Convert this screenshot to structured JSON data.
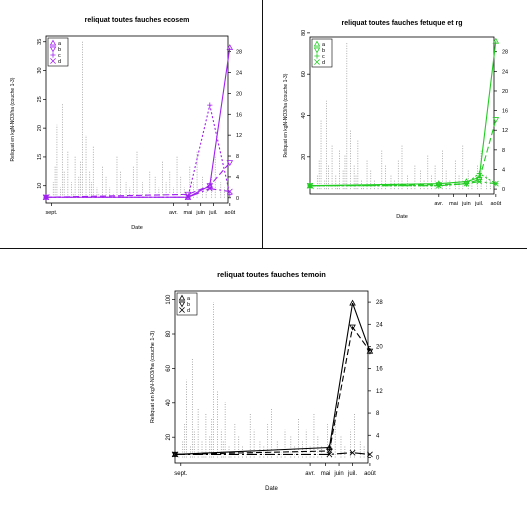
{
  "figure": {
    "colors": {
      "ecosem": "#a020f0",
      "fetuque": "#22cc22",
      "temoin": "#000000",
      "rain": "#9a9a9a",
      "frame": "#000000",
      "divider": "#111111"
    }
  },
  "chart_data": [
    {
      "type": "line",
      "title": "reliquat toutes fauches ecosem",
      "xlabel": "Date",
      "ylabel": "Reliquat en kgN-NO3/ha (couche 1-3)",
      "xlim": [
        0,
        100
      ],
      "ylim": [
        7,
        36
      ],
      "yticks": [
        10,
        15,
        20,
        25,
        30,
        35
      ],
      "y2lim": [
        -1,
        31
      ],
      "y2ticks": [
        0,
        4,
        8,
        12,
        16,
        20,
        24,
        28
      ],
      "month_ticks": [
        {
          "label": "sept.",
          "x": 3
        },
        {
          "label": "avr.",
          "x": 70
        },
        {
          "label": "mai",
          "x": 78
        },
        {
          "label": "juin",
          "x": 85
        },
        {
          "label": "juil.",
          "x": 92
        },
        {
          "label": "août",
          "x": 101
        }
      ],
      "legend": {
        "position": "top-left",
        "items": [
          {
            "label": "a",
            "pch": "triangle"
          },
          {
            "label": "b",
            "pch": "triangle-down"
          },
          {
            "label": "c",
            "pch": "plus"
          },
          {
            "label": "d",
            "pch": "cross"
          }
        ]
      },
      "series": [
        {
          "name": "a",
          "pch": "triangle",
          "dash": "0",
          "x": [
            0,
            78,
            90,
            101
          ],
          "y": [
            8,
            8,
            10,
            34
          ]
        },
        {
          "name": "b",
          "pch": "triangle-down",
          "dash": "6,3",
          "x": [
            0,
            78,
            90,
            101
          ],
          "y": [
            8,
            8.5,
            10,
            14
          ]
        },
        {
          "name": "c",
          "pch": "plus",
          "dash": "2,2",
          "x": [
            0,
            78,
            90,
            101
          ],
          "y": [
            8,
            8,
            24,
            8.5
          ]
        },
        {
          "name": "d",
          "pch": "cross",
          "dash": "10,3,2,3",
          "x": [
            0,
            78,
            90,
            101
          ],
          "y": [
            8,
            8,
            9.5,
            9
          ]
        }
      ],
      "rainfall": {
        "x": [
          2,
          4,
          5,
          6,
          8,
          9,
          10,
          12,
          14,
          15,
          16,
          18,
          19,
          20,
          22,
          24,
          25,
          26,
          28,
          29,
          31,
          33,
          35,
          37,
          39,
          41,
          44,
          46,
          48,
          50,
          53,
          55,
          57,
          60,
          62,
          64,
          66,
          68,
          70,
          72,
          74,
          76,
          79,
          81,
          83,
          86,
          88,
          91,
          93,
          96,
          98
        ],
        "y": [
          1,
          3,
          6,
          14,
          2,
          18,
          5,
          9,
          3,
          1,
          8,
          4,
          7,
          30,
          12,
          5,
          3,
          10,
          2,
          1,
          6,
          4,
          2,
          1,
          8,
          5,
          3,
          2,
          6,
          9,
          3,
          1,
          5,
          4,
          2,
          7,
          3,
          5,
          2,
          8,
          4,
          2,
          6,
          3,
          9,
          4,
          2,
          5,
          8,
          3,
          2
        ]
      }
    },
    {
      "type": "line",
      "title": "reliquat toutes fauches fetuque et rg",
      "xlabel": "Date",
      "ylabel": "Reliquat en kgN-NO3/ha (couche 1-3)",
      "xlim": [
        0,
        100
      ],
      "ylim": [
        2,
        78
      ],
      "yticks": [
        20,
        40,
        60,
        80
      ],
      "y2lim": [
        -1,
        31
      ],
      "y2ticks": [
        0,
        4,
        8,
        12,
        16,
        20,
        24,
        28
      ],
      "month_ticks": [
        {
          "label": "avr.",
          "x": 70
        },
        {
          "label": "mai",
          "x": 78
        },
        {
          "label": "juin",
          "x": 85
        },
        {
          "label": "juil.",
          "x": 92
        },
        {
          "label": "août",
          "x": 101
        }
      ],
      "legend": {
        "position": "top-left",
        "items": [
          {
            "label": "a",
            "pch": "triangle"
          },
          {
            "label": "b",
            "pch": "triangle-down"
          },
          {
            "label": "c",
            "pch": "plus"
          },
          {
            "label": "d",
            "pch": "cross"
          }
        ]
      },
      "series": [
        {
          "name": "a",
          "pch": "triangle",
          "dash": "0",
          "x": [
            0,
            70,
            85,
            92,
            101
          ],
          "y": [
            6,
            7,
            8,
            10,
            76
          ]
        },
        {
          "name": "b",
          "pch": "triangle-down",
          "dash": "6,3",
          "x": [
            0,
            70,
            85,
            92,
            101
          ],
          "y": [
            6,
            6.5,
            7,
            9,
            38
          ]
        },
        {
          "name": "c",
          "pch": "plus",
          "dash": "2,2",
          "x": [
            0,
            70,
            85,
            92,
            101
          ],
          "y": [
            6,
            6,
            7,
            12,
            7
          ]
        },
        {
          "name": "d",
          "pch": "cross",
          "dash": "10,3,2,3",
          "x": [
            0,
            70,
            85,
            92,
            101
          ],
          "y": [
            6,
            6,
            7,
            8,
            7
          ]
        }
      ],
      "rainfall": {
        "x": [
          2,
          4,
          5,
          6,
          8,
          9,
          10,
          12,
          14,
          15,
          16,
          18,
          19,
          20,
          22,
          24,
          25,
          26,
          28,
          29,
          31,
          33,
          35,
          37,
          39,
          41,
          44,
          46,
          48,
          50,
          53,
          55,
          57,
          60,
          62,
          64,
          66,
          68,
          70,
          72,
          74,
          76,
          79,
          81,
          83,
          86,
          88,
          91,
          93,
          96,
          98
        ],
        "y": [
          1,
          3,
          6,
          14,
          2,
          18,
          5,
          9,
          3,
          1,
          8,
          4,
          7,
          30,
          12,
          5,
          3,
          10,
          2,
          1,
          6,
          4,
          2,
          1,
          8,
          5,
          3,
          2,
          6,
          9,
          3,
          1,
          5,
          4,
          2,
          7,
          3,
          5,
          2,
          8,
          4,
          2,
          6,
          3,
          9,
          4,
          2,
          5,
          8,
          3,
          2
        ]
      }
    },
    {
      "type": "line",
      "title": "reliquat toutes fauches temoin",
      "xlabel": "Date",
      "ylabel": "Reliquat en kgN-NO3/ha (couche 1-3)",
      "xlim": [
        0,
        100
      ],
      "ylim": [
        5,
        105
      ],
      "yticks": [
        20,
        40,
        60,
        80,
        100
      ],
      "y2lim": [
        -1,
        30
      ],
      "y2ticks": [
        0,
        4,
        8,
        12,
        16,
        20,
        24,
        28
      ],
      "month_ticks": [
        {
          "label": "sept.",
          "x": 3
        },
        {
          "label": "avr.",
          "x": 70
        },
        {
          "label": "mai",
          "x": 78
        },
        {
          "label": "juin",
          "x": 85
        },
        {
          "label": "juil.",
          "x": 92
        },
        {
          "label": "août",
          "x": 101
        }
      ],
      "legend": {
        "position": "top-left",
        "items": [
          {
            "label": "a",
            "pch": "triangle"
          },
          {
            "label": "b",
            "pch": "triangle-down"
          },
          {
            "label": "d",
            "pch": "cross"
          }
        ]
      },
      "series": [
        {
          "name": "a",
          "pch": "triangle",
          "dash": "0",
          "x": [
            0,
            80,
            92,
            101
          ],
          "y": [
            10,
            14,
            98,
            70
          ]
        },
        {
          "name": "b",
          "pch": "triangle-down",
          "dash": "6,3",
          "x": [
            0,
            80,
            92,
            101
          ],
          "y": [
            10,
            12,
            84,
            70
          ]
        },
        {
          "name": "d",
          "pch": "cross",
          "dash": "10,3,2,3",
          "x": [
            0,
            80,
            92,
            101
          ],
          "y": [
            10,
            10,
            11,
            10
          ]
        }
      ],
      "rainfall": {
        "x": [
          2,
          4,
          5,
          6,
          8,
          9,
          10,
          12,
          14,
          15,
          16,
          18,
          19,
          20,
          22,
          24,
          25,
          26,
          28,
          29,
          31,
          33,
          35,
          37,
          39,
          41,
          44,
          46,
          48,
          50,
          53,
          55,
          57,
          60,
          62,
          64,
          66,
          68,
          70,
          72,
          74,
          76,
          79,
          81,
          83,
          86,
          88,
          91,
          93,
          96,
          98
        ],
        "y": [
          1,
          3,
          6,
          14,
          2,
          18,
          5,
          9,
          3,
          1,
          8,
          4,
          7,
          28,
          12,
          5,
          3,
          10,
          2,
          1,
          6,
          4,
          2,
          1,
          8,
          5,
          3,
          2,
          6,
          9,
          3,
          1,
          5,
          4,
          2,
          7,
          3,
          5,
          2,
          8,
          4,
          2,
          6,
          3,
          9,
          4,
          2,
          5,
          8,
          3,
          2
        ]
      }
    }
  ]
}
